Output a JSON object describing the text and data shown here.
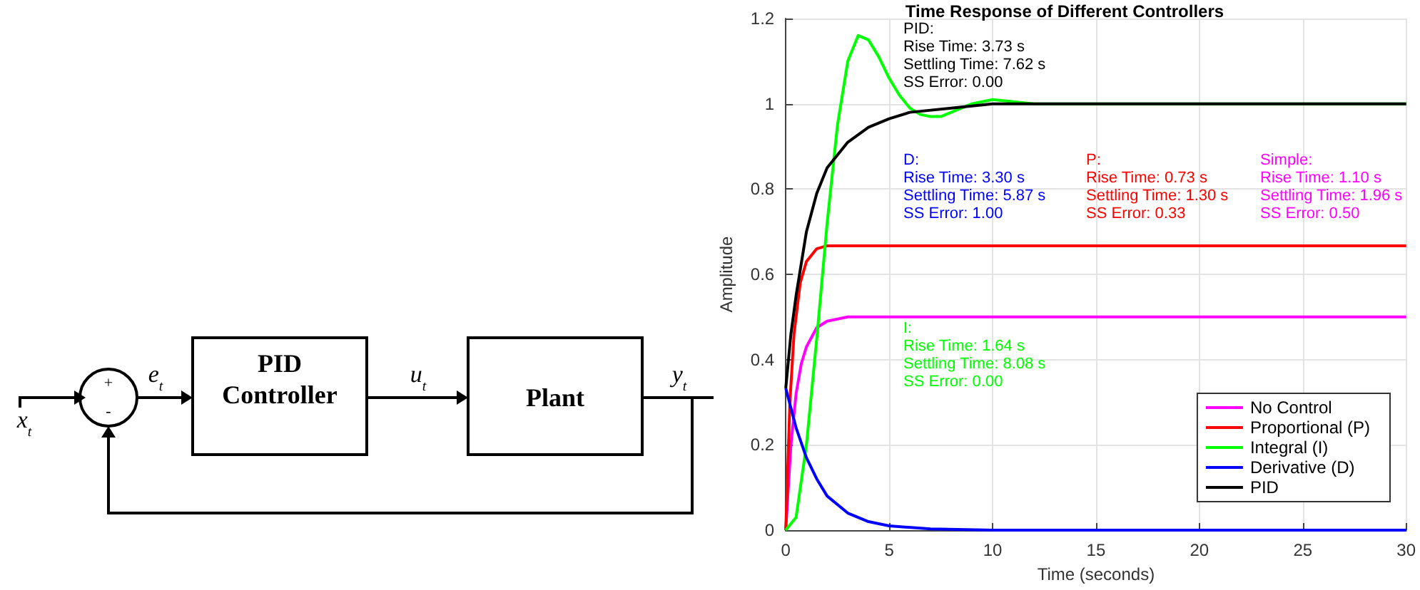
{
  "chart_data": [
    {
      "type": "other",
      "annotations": [
        "x$_{t}$",
        "+",
        "-",
        "e$_{t}$",
        "PID\nController",
        "u$_{t}$",
        "Plant",
        "y$_{t}$"
      ]
    },
    {
      "type": "line",
      "title": "Time Response of Different Controllers",
      "xlabel": "Time (seconds)",
      "ylabel": "Amplitude",
      "xlim": [
        0,
        30
      ],
      "xticks": [
        0,
        5,
        10,
        15,
        20,
        25,
        30
      ],
      "ylim": [
        0,
        1.2
      ],
      "yticks": [
        0,
        0.2,
        0.4,
        0.6,
        0.8,
        1,
        1.2
      ],
      "grid": true,
      "legend": "bottom right",
      "series": [
        {
          "name": "No Control",
          "color": "#ff00ff",
          "x": [
            0,
            0.25,
            0.5,
            0.75,
            1,
            1.5,
            2,
            3,
            4,
            30
          ],
          "values": [
            0,
            0.2,
            0.32,
            0.39,
            0.43,
            0.475,
            0.49,
            0.5,
            0.5,
            0.5
          ]
        },
        {
          "name": "Proportional (P)",
          "color": "#ff0000",
          "x": [
            0,
            0.2,
            0.4,
            0.7,
            1,
            1.5,
            2,
            3,
            30
          ],
          "values": [
            0,
            0.3,
            0.46,
            0.58,
            0.63,
            0.66,
            0.667,
            0.667,
            0.667
          ]
        },
        {
          "name": "Integral (I)",
          "color": "#00ff00",
          "x": [
            0,
            0.5,
            1,
            1.5,
            2,
            2.5,
            3,
            3.5,
            4,
            4.5,
            5,
            5.5,
            6,
            6.5,
            7,
            7.5,
            8,
            9,
            10,
            12,
            15,
            30
          ],
          "values": [
            0,
            0.03,
            0.2,
            0.45,
            0.72,
            0.95,
            1.1,
            1.16,
            1.15,
            1.11,
            1.06,
            1.02,
            0.99,
            0.975,
            0.97,
            0.97,
            0.98,
            1,
            1.01,
            1,
            1,
            1
          ]
        },
        {
          "name": "Derivative (D)",
          "color": "#0000ff",
          "x": [
            0,
            0.5,
            1,
            1.5,
            2,
            3,
            4,
            5,
            7,
            10,
            30
          ],
          "values": [
            0.333,
            0.24,
            0.17,
            0.12,
            0.08,
            0.04,
            0.02,
            0.01,
            0.003,
            0,
            0
          ]
        },
        {
          "name": "PID",
          "color": "#000000",
          "x": [
            0,
            0.25,
            0.5,
            1,
            1.5,
            2,
            3,
            4,
            5,
            6,
            8,
            10,
            30
          ],
          "values": [
            0.333,
            0.46,
            0.55,
            0.7,
            0.79,
            0.85,
            0.91,
            0.945,
            0.965,
            0.98,
            0.99,
            1,
            1
          ]
        }
      ],
      "annotations": [
        "PID:\nRise Time: 3.73 s\nSettling Time: 7.62 s\nSS Error: 0.00",
        "D:\nRise Time: 3.30 s\nSettling Time: 5.87 s\nSS Error: 1.00",
        "P:\nRise Time: 0.73 s\nSettling Time: 1.30 s\nSS Error: 0.33",
        "Simple:\nRise Time: 1.10 s\nSettling Time: 1.96 s\nSS Error: 0.50",
        "I:\nRise Time: 1.64 s\nSettling Time: 8.08 s\nSS Error: 0.00"
      ]
    }
  ]
}
